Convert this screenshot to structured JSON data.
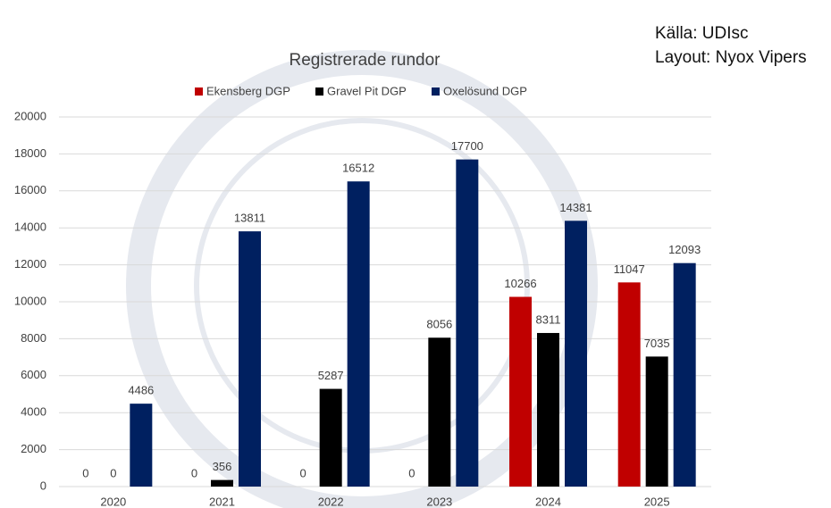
{
  "chart_data": {
    "type": "bar",
    "title": "Registrerade rundor",
    "notes": [
      "Källa: UDIsc",
      "Layout: Nyox Vipers"
    ],
    "categories": [
      "2020",
      "2021",
      "2022",
      "2023",
      "2024",
      "2025"
    ],
    "series": [
      {
        "name": "Ekensberg DGP",
        "color": "#c00000",
        "values": [
          0,
          0,
          0,
          0,
          10266,
          11047
        ]
      },
      {
        "name": "Gravel Pit DGP",
        "color": "#000000",
        "values": [
          0,
          356,
          5287,
          8056,
          8311,
          7035
        ]
      },
      {
        "name": "Oxelösund DGP",
        "color": "#002060",
        "values": [
          4486,
          13811,
          16512,
          17700,
          14381,
          12093
        ]
      }
    ],
    "ylim": [
      0,
      20000
    ],
    "yticks": [
      0,
      2000,
      4000,
      6000,
      8000,
      10000,
      12000,
      14000,
      16000,
      18000,
      20000
    ],
    "grid": true,
    "legend": "top"
  }
}
